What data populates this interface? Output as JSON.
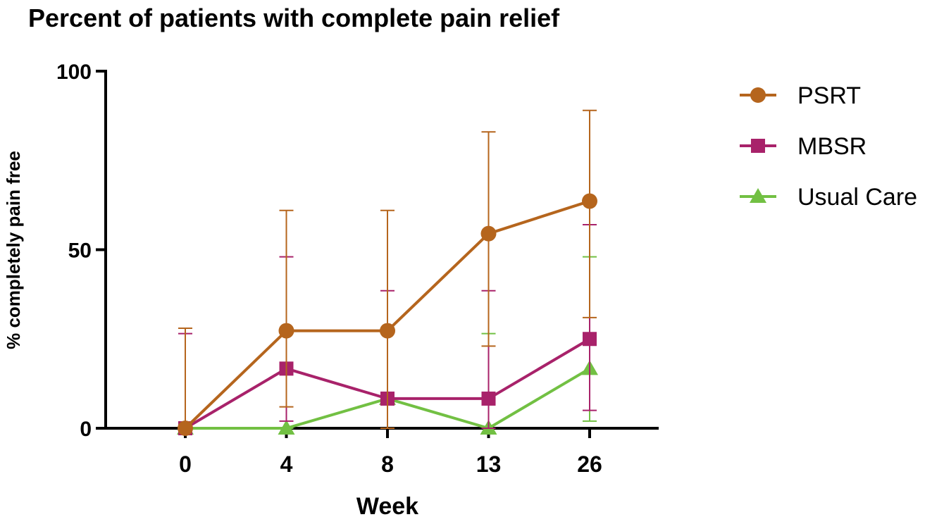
{
  "chart_data": {
    "type": "line",
    "title": "Percent of patients with complete pain relief",
    "xlabel": "Week",
    "ylabel": "% completely pain free",
    "categories": [
      "0",
      "4",
      "8",
      "13",
      "26"
    ],
    "ylim": [
      0,
      100
    ],
    "yticks": [
      "0",
      "50",
      "100"
    ],
    "legend_position": "right",
    "series": [
      {
        "name": "PSRT",
        "color": "#B5651D",
        "marker": "circle",
        "values": [
          0,
          27.3,
          27.3,
          54.5,
          63.6
        ],
        "err_upper": [
          28,
          61,
          61,
          83,
          89
        ],
        "err_lower": [
          0,
          6,
          0,
          23,
          31
        ]
      },
      {
        "name": "MBSR",
        "color": "#A8226A",
        "marker": "square",
        "values": [
          0,
          16.7,
          8.3,
          8.3,
          25
        ],
        "err_upper": [
          26.5,
          48,
          38.5,
          38.5,
          57
        ],
        "err_lower": [
          0,
          2,
          0,
          0,
          5
        ]
      },
      {
        "name": "Usual Care",
        "color": "#72C043",
        "marker": "triangle",
        "values": [
          0,
          0,
          8.3,
          0,
          16.7
        ],
        "err_upper": [
          0,
          0,
          8.3,
          26.5,
          48
        ],
        "err_lower": [
          0,
          0,
          8.3,
          0,
          2
        ]
      }
    ]
  }
}
